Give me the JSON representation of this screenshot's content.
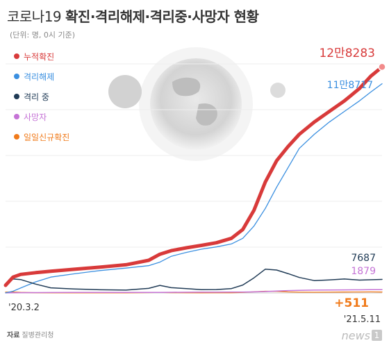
{
  "title": {
    "light": "코로나19 ",
    "bold": "확진·격리해제·격리중·사망자 현황"
  },
  "subtitle": "(단위: 명, 0시 기준)",
  "source": {
    "label": "자료",
    "name": "질병관리청"
  },
  "logo": {
    "text": "news",
    "num": "1"
  },
  "chart_data": {
    "type": "line",
    "x_start_label": "'20.3.2",
    "x_end_label": "'21.5.11",
    "ylim": [
      0,
      130000
    ],
    "grid": true,
    "legend_position": "top-left",
    "x": [
      0,
      0.02,
      0.04,
      0.08,
      0.12,
      0.18,
      0.25,
      0.32,
      0.38,
      0.41,
      0.44,
      0.48,
      0.52,
      0.56,
      0.6,
      0.63,
      0.66,
      0.69,
      0.72,
      0.75,
      0.78,
      0.82,
      0.86,
      0.9,
      0.94,
      0.97,
      1.0
    ],
    "series": [
      {
        "name": "누적확진",
        "color": "#d83a3a",
        "end_label": "12만8283",
        "width": 5,
        "values": [
          4335,
          9000,
          10500,
          11500,
          12300,
          13400,
          14600,
          16000,
          18500,
          22000,
          24000,
          25600,
          27000,
          28500,
          31000,
          36000,
          47000,
          63000,
          75000,
          83000,
          90000,
          97000,
          103000,
          109000,
          116000,
          123000,
          128283
        ]
      },
      {
        "name": "격리해제",
        "color": "#3a8fe0",
        "end_label": "11만8717",
        "width": 1.3,
        "values": [
          30,
          1000,
          2800,
          6300,
          9000,
          10800,
          12700,
          14100,
          15500,
          17500,
          20800,
          23000,
          24800,
          26100,
          27800,
          31000,
          38000,
          48000,
          60000,
          71000,
          82000,
          90000,
          97000,
          103000,
          109000,
          114000,
          118717
        ]
      },
      {
        "name": "격리 중",
        "color": "#1f3a55",
        "end_label": "7687",
        "width": 1.5,
        "values": [
          4275,
          7900,
          7600,
          5000,
          2900,
          2300,
          1800,
          1600,
          2600,
          4300,
          3000,
          2500,
          1900,
          1950,
          2500,
          4500,
          8600,
          13500,
          13000,
          11000,
          8800,
          7000,
          7400,
          7900,
          7300,
          7500,
          7687
        ]
      },
      {
        "name": "사망자",
        "color": "#c573d6",
        "end_label": "1879",
        "width": 1.5,
        "values": [
          28,
          80,
          140,
          200,
          250,
          270,
          290,
          300,
          310,
          330,
          350,
          380,
          420,
          450,
          480,
          520,
          600,
          800,
          1100,
          1350,
          1500,
          1600,
          1680,
          1740,
          1790,
          1840,
          1879
        ]
      },
      {
        "name": "일일신규확진",
        "color": "#f07a1a",
        "end_label": "+511",
        "width": 1.3,
        "values": [
          476,
          500,
          300,
          120,
          40,
          30,
          40,
          60,
          200,
          300,
          150,
          100,
          90,
          100,
          120,
          300,
          650,
          1000,
          900,
          600,
          450,
          400,
          450,
          500,
          550,
          600,
          511
        ]
      }
    ]
  }
}
